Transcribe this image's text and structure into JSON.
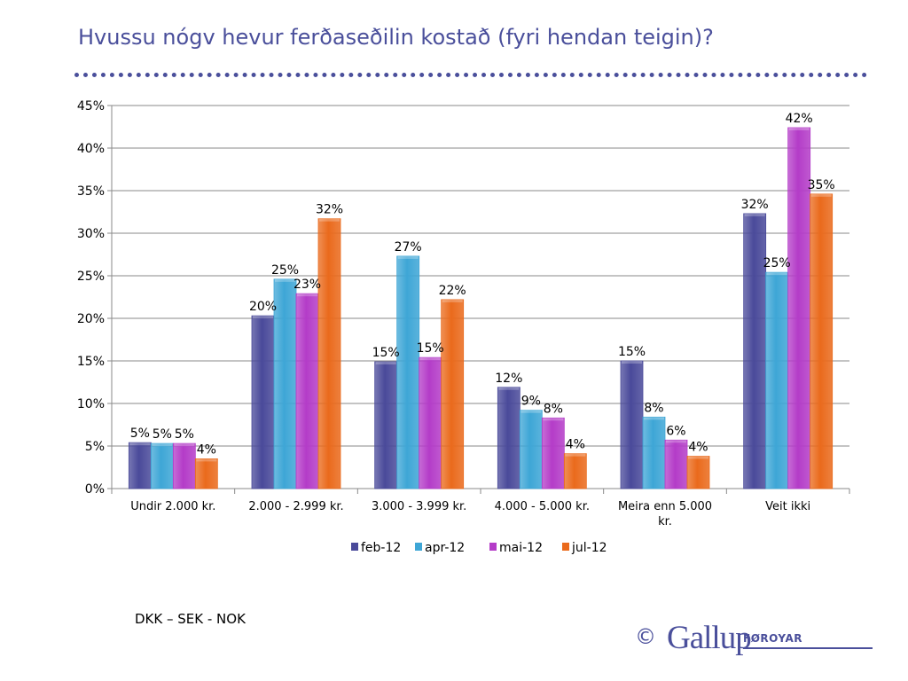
{
  "page": {
    "title": "Hvussu nógv hevur ferðaseðilin kostað (fyri hendan teigin)?",
    "note": "DKK – SEK - NOK",
    "logo": {
      "copyright": "©",
      "brand": "Gallup",
      "sub": "FØROYAR"
    }
  },
  "chart_data": {
    "type": "bar",
    "title": "",
    "xlabel": "",
    "ylabel": "",
    "ylim": [
      0,
      45
    ],
    "yticks": [
      "0%",
      "5%",
      "10%",
      "15%",
      "20%",
      "25%",
      "30%",
      "35%",
      "40%",
      "45%"
    ],
    "ytick_values": [
      0,
      5,
      10,
      15,
      20,
      25,
      30,
      35,
      40,
      45
    ],
    "grid": true,
    "legend_position": "bottom",
    "categories": [
      [
        "Undir 2.000 kr."
      ],
      [
        "2.000 - 2.999 kr."
      ],
      [
        "3.000 - 3.999 kr."
      ],
      [
        "4.000 - 5.000 kr."
      ],
      [
        "Meira enn 5.000",
        "kr."
      ],
      [
        "Veit ikki"
      ]
    ],
    "series": [
      {
        "name": "feb-12",
        "color": "#4a4a9a",
        "values": [
          5.4,
          20.3,
          14.9,
          11.9,
          15.0,
          32.3
        ],
        "labels": [
          "5%",
          "20%",
          "15%",
          "12%",
          "15%",
          "32%"
        ]
      },
      {
        "name": "apr-12",
        "color": "#3ea6d6",
        "values": [
          5.3,
          24.6,
          27.3,
          9.2,
          8.4,
          25.4
        ],
        "labels": [
          "5%",
          "25%",
          "27%",
          "9%",
          "8%",
          "25%"
        ]
      },
      {
        "name": "mai-12",
        "color": "#b43cc8",
        "values": [
          5.3,
          22.9,
          15.4,
          8.3,
          5.7,
          42.4
        ],
        "labels": [
          "5%",
          "23%",
          "15%",
          "8%",
          "6%",
          "42%"
        ]
      },
      {
        "name": "jul-12",
        "color": "#ea6a1c",
        "values": [
          3.5,
          31.7,
          22.2,
          4.1,
          3.8,
          34.6
        ],
        "labels": [
          "4%",
          "32%",
          "22%",
          "4%",
          "4%",
          "35%"
        ]
      }
    ]
  }
}
